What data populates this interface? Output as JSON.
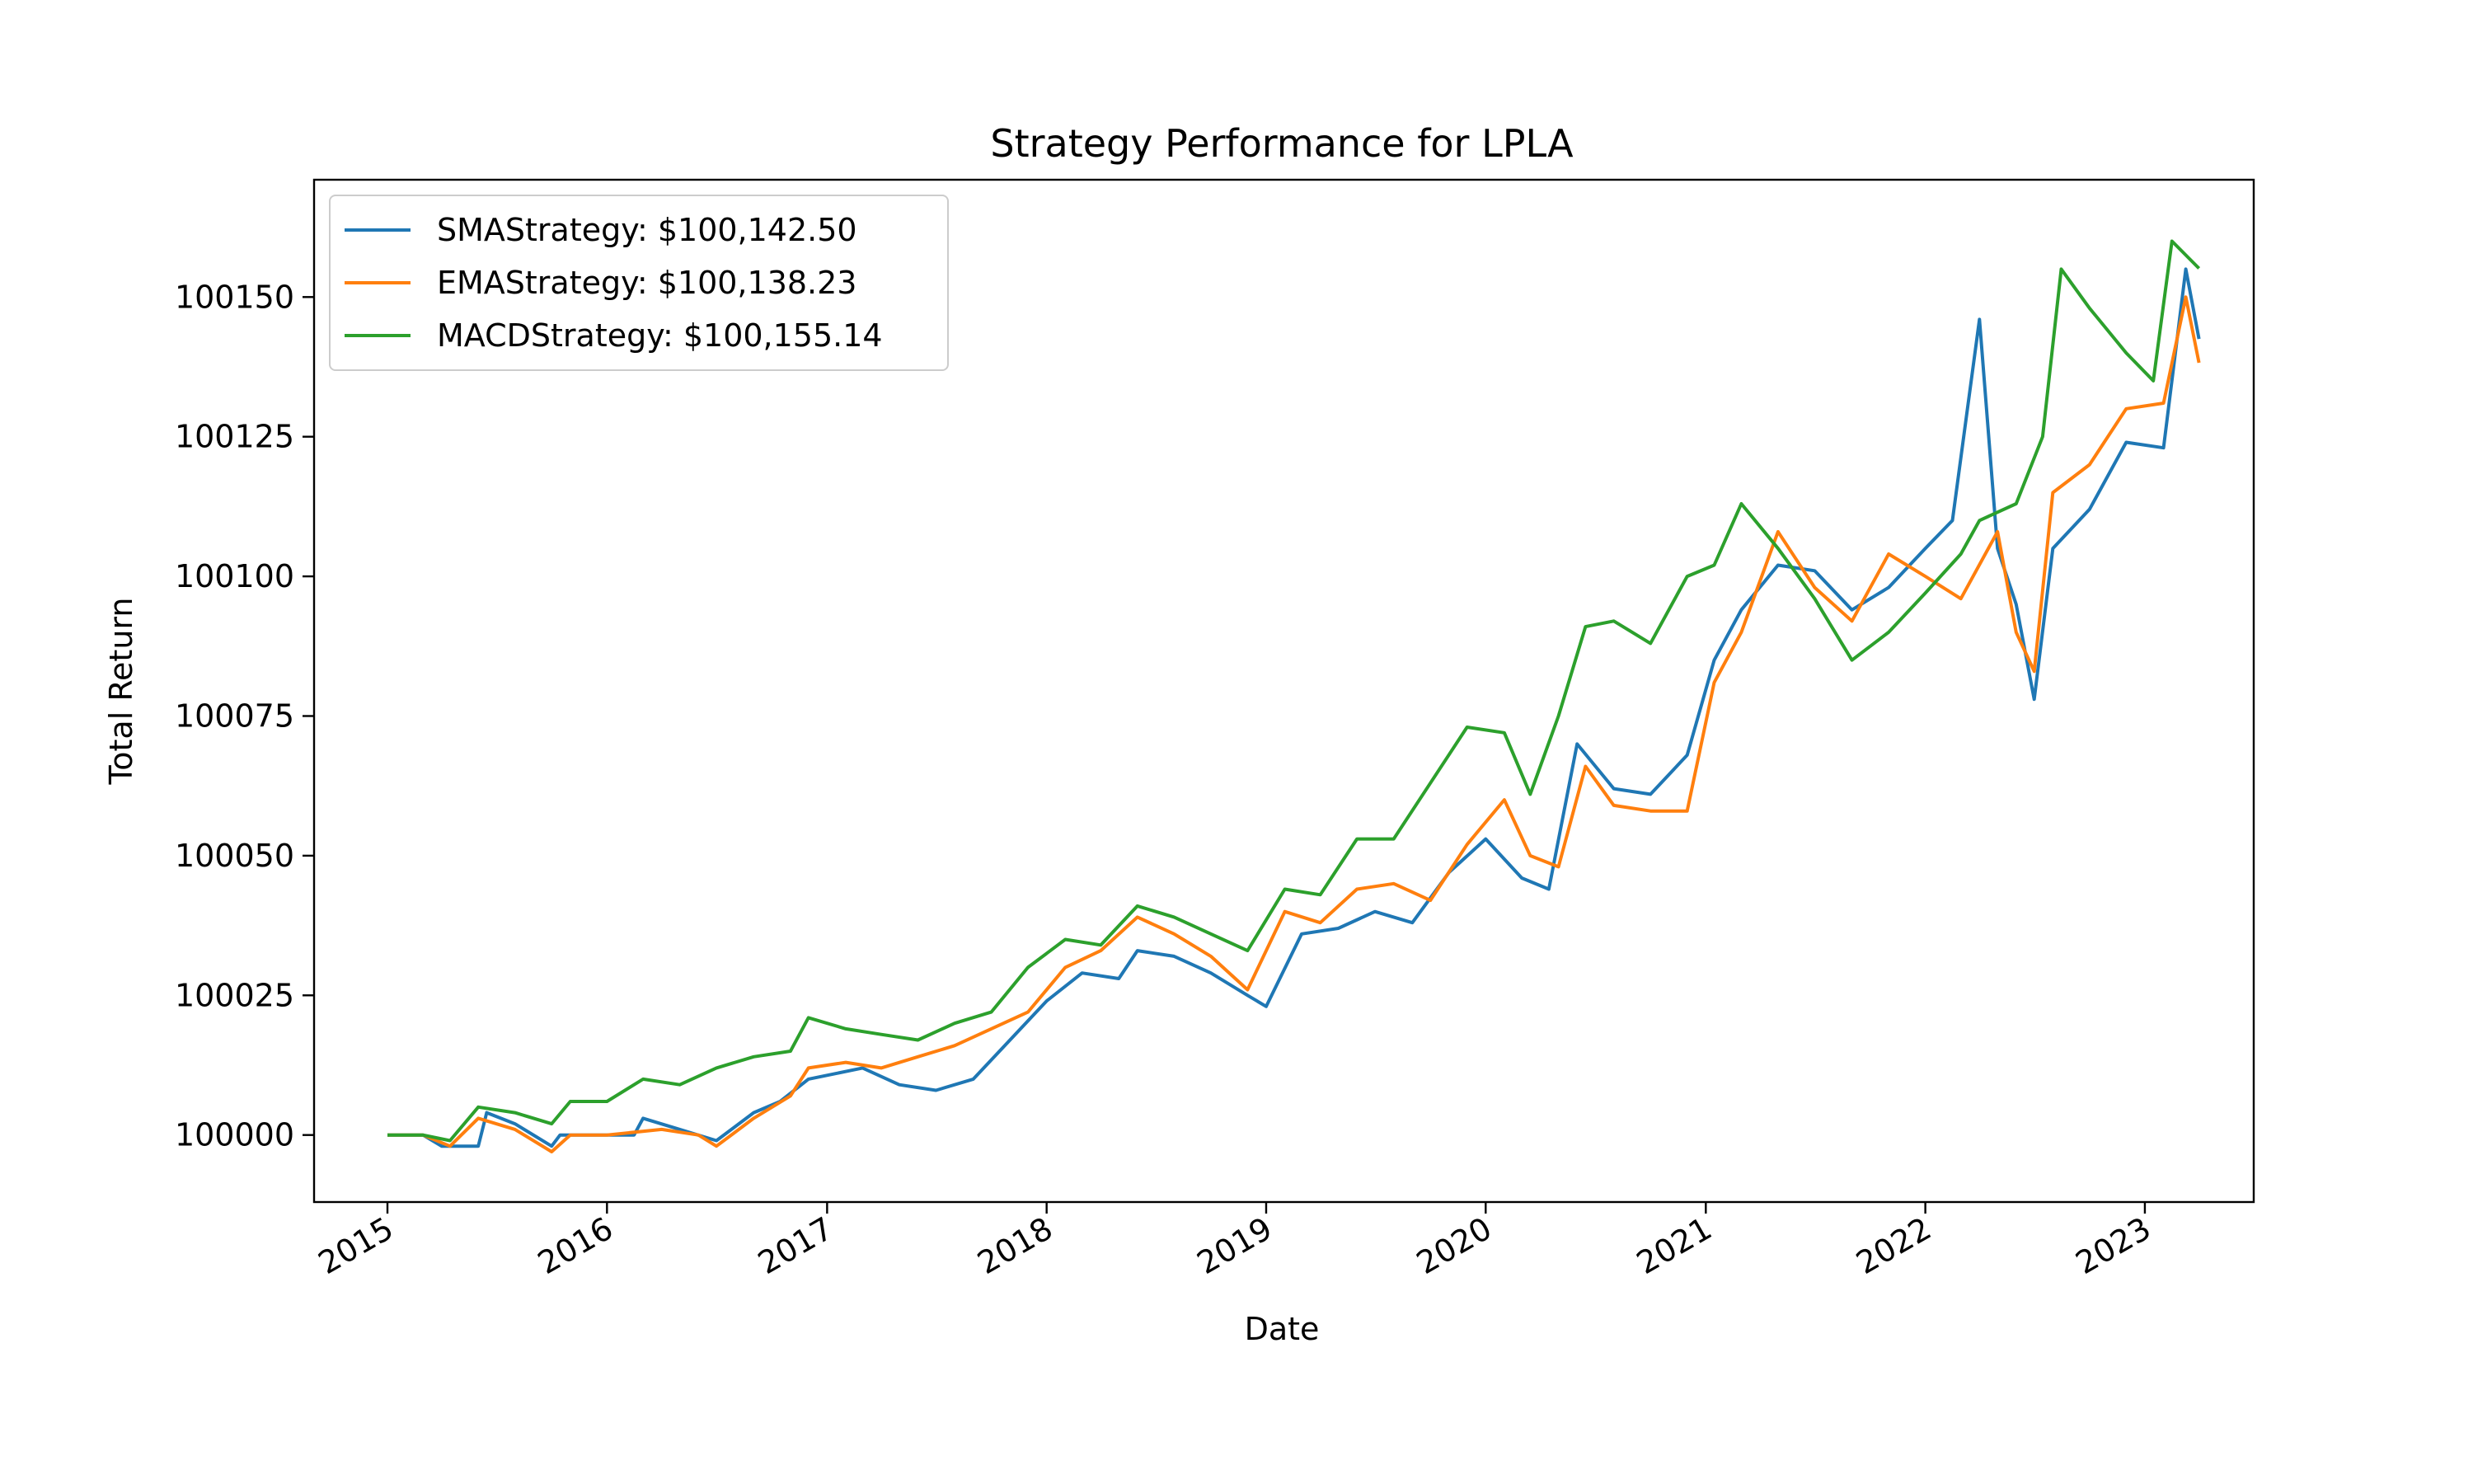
{
  "chart_data": {
    "type": "line",
    "title": "Strategy Performance for LPLA",
    "xlabel": "Date",
    "ylabel": "Total Return",
    "xlim": [
      "2014-09-01",
      "2023-07-01"
    ],
    "ylim": [
      99988,
      100171
    ],
    "x_ticks": [
      "2015",
      "2016",
      "2017",
      "2018",
      "2019",
      "2020",
      "2021",
      "2022",
      "2023"
    ],
    "y_ticks": [
      100000,
      100025,
      100050,
      100075,
      100100,
      100125,
      100150
    ],
    "legend": {
      "position": "top-left"
    },
    "grid": false,
    "series": [
      {
        "name": "SMAStrategy: $100,142.50",
        "color": "#1f77b4",
        "points": [
          [
            "2015-01-01",
            100000
          ],
          [
            "2015-03-01",
            100000
          ],
          [
            "2015-04-01",
            99998
          ],
          [
            "2015-06-01",
            99998
          ],
          [
            "2015-06-15",
            100004
          ],
          [
            "2015-08-01",
            100002
          ],
          [
            "2015-10-01",
            99998
          ],
          [
            "2015-10-15",
            100000
          ],
          [
            "2016-01-01",
            100000
          ],
          [
            "2016-02-15",
            100000
          ],
          [
            "2016-03-01",
            100003
          ],
          [
            "2016-05-01",
            100001
          ],
          [
            "2016-07-01",
            99999
          ],
          [
            "2016-09-01",
            100004
          ],
          [
            "2016-10-15",
            100006
          ],
          [
            "2016-12-01",
            100010
          ],
          [
            "2017-01-15",
            100011
          ],
          [
            "2017-03-01",
            100012
          ],
          [
            "2017-05-01",
            100009
          ],
          [
            "2017-07-01",
            100008
          ],
          [
            "2017-09-01",
            100010
          ],
          [
            "2017-11-01",
            100017
          ],
          [
            "2018-01-01",
            100024
          ],
          [
            "2018-03-01",
            100029
          ],
          [
            "2018-05-01",
            100028
          ],
          [
            "2018-06-01",
            100033
          ],
          [
            "2018-08-01",
            100032
          ],
          [
            "2018-10-01",
            100029
          ],
          [
            "2018-12-01",
            100025
          ],
          [
            "2019-01-01",
            100023
          ],
          [
            "2019-03-01",
            100036
          ],
          [
            "2019-05-01",
            100037
          ],
          [
            "2019-07-01",
            100040
          ],
          [
            "2019-09-01",
            100038
          ],
          [
            "2019-11-01",
            100047
          ],
          [
            "2020-01-01",
            100053
          ],
          [
            "2020-03-01",
            100046
          ],
          [
            "2020-04-15",
            100044
          ],
          [
            "2020-06-01",
            100070
          ],
          [
            "2020-08-01",
            100062
          ],
          [
            "2020-10-01",
            100061
          ],
          [
            "2020-12-01",
            100068
          ],
          [
            "2021-01-15",
            100085
          ],
          [
            "2021-03-01",
            100094
          ],
          [
            "2021-05-01",
            100102
          ],
          [
            "2021-07-01",
            100101
          ],
          [
            "2021-09-01",
            100094
          ],
          [
            "2021-11-01",
            100098
          ],
          [
            "2022-01-01",
            100105
          ],
          [
            "2022-02-15",
            100110
          ],
          [
            "2022-04-01",
            100146
          ],
          [
            "2022-05-01",
            100105
          ],
          [
            "2022-06-01",
            100095
          ],
          [
            "2022-07-01",
            100078
          ],
          [
            "2022-08-01",
            100105
          ],
          [
            "2022-10-01",
            100112
          ],
          [
            "2022-12-01",
            100124
          ],
          [
            "2023-02-01",
            100123
          ],
          [
            "2023-03-10",
            100155
          ],
          [
            "2023-04-01",
            100142.5
          ]
        ]
      },
      {
        "name": "EMAStrategy: $100,138.23",
        "color": "#ff7f0e",
        "points": [
          [
            "2015-01-01",
            100000
          ],
          [
            "2015-03-01",
            100000
          ],
          [
            "2015-04-15",
            99998
          ],
          [
            "2015-06-01",
            100003
          ],
          [
            "2015-08-01",
            100001
          ],
          [
            "2015-10-01",
            99997
          ],
          [
            "2015-11-01",
            100000
          ],
          [
            "2016-01-01",
            100000
          ],
          [
            "2016-04-01",
            100001
          ],
          [
            "2016-06-01",
            100000
          ],
          [
            "2016-07-01",
            99998
          ],
          [
            "2016-09-01",
            100003
          ],
          [
            "2016-11-01",
            100007
          ],
          [
            "2016-12-01",
            100012
          ],
          [
            "2017-02-01",
            100013
          ],
          [
            "2017-04-01",
            100012
          ],
          [
            "2017-06-01",
            100014
          ],
          [
            "2017-08-01",
            100016
          ],
          [
            "2017-10-01",
            100019
          ],
          [
            "2017-12-01",
            100022
          ],
          [
            "2018-02-01",
            100030
          ],
          [
            "2018-04-01",
            100033
          ],
          [
            "2018-06-01",
            100039
          ],
          [
            "2018-08-01",
            100036
          ],
          [
            "2018-10-01",
            100032
          ],
          [
            "2018-12-01",
            100026
          ],
          [
            "2019-02-01",
            100040
          ],
          [
            "2019-04-01",
            100038
          ],
          [
            "2019-06-01",
            100044
          ],
          [
            "2019-08-01",
            100045
          ],
          [
            "2019-10-01",
            100042
          ],
          [
            "2019-12-01",
            100052
          ],
          [
            "2020-02-01",
            100060
          ],
          [
            "2020-03-15",
            100050
          ],
          [
            "2020-05-01",
            100048
          ],
          [
            "2020-06-15",
            100066
          ],
          [
            "2020-08-01",
            100059
          ],
          [
            "2020-10-01",
            100058
          ],
          [
            "2020-12-01",
            100058
          ],
          [
            "2021-01-15",
            100081
          ],
          [
            "2021-03-01",
            100090
          ],
          [
            "2021-05-01",
            100108
          ],
          [
            "2021-07-01",
            100098
          ],
          [
            "2021-09-01",
            100092
          ],
          [
            "2021-11-01",
            100104
          ],
          [
            "2022-01-01",
            100100
          ],
          [
            "2022-03-01",
            100096
          ],
          [
            "2022-05-01",
            100108
          ],
          [
            "2022-06-01",
            100090
          ],
          [
            "2022-07-01",
            100083
          ],
          [
            "2022-08-01",
            100115
          ],
          [
            "2022-10-01",
            100120
          ],
          [
            "2022-12-01",
            100130
          ],
          [
            "2023-02-01",
            100131
          ],
          [
            "2023-03-10",
            100150
          ],
          [
            "2023-04-01",
            100138.23
          ]
        ]
      },
      {
        "name": "MACDStrategy: $100,155.14",
        "color": "#2ca02c",
        "points": [
          [
            "2015-01-01",
            100000
          ],
          [
            "2015-03-01",
            100000
          ],
          [
            "2015-04-15",
            99999
          ],
          [
            "2015-06-01",
            100005
          ],
          [
            "2015-08-01",
            100004
          ],
          [
            "2015-10-01",
            100002
          ],
          [
            "2015-11-01",
            100006
          ],
          [
            "2016-01-01",
            100006
          ],
          [
            "2016-03-01",
            100010
          ],
          [
            "2016-05-01",
            100009
          ],
          [
            "2016-07-01",
            100012
          ],
          [
            "2016-09-01",
            100014
          ],
          [
            "2016-11-01",
            100015
          ],
          [
            "2016-12-01",
            100021
          ],
          [
            "2017-02-01",
            100019
          ],
          [
            "2017-04-01",
            100018
          ],
          [
            "2017-06-01",
            100017
          ],
          [
            "2017-08-01",
            100020
          ],
          [
            "2017-10-01",
            100022
          ],
          [
            "2017-12-01",
            100030
          ],
          [
            "2018-02-01",
            100035
          ],
          [
            "2018-04-01",
            100034
          ],
          [
            "2018-06-01",
            100041
          ],
          [
            "2018-08-01",
            100039
          ],
          [
            "2018-10-01",
            100036
          ],
          [
            "2018-12-01",
            100033
          ],
          [
            "2019-02-01",
            100044
          ],
          [
            "2019-04-01",
            100043
          ],
          [
            "2019-06-01",
            100053
          ],
          [
            "2019-08-01",
            100053
          ],
          [
            "2019-10-01",
            100063
          ],
          [
            "2019-12-01",
            100073
          ],
          [
            "2020-02-01",
            100072
          ],
          [
            "2020-03-15",
            100061
          ],
          [
            "2020-05-01",
            100075
          ],
          [
            "2020-06-15",
            100091
          ],
          [
            "2020-08-01",
            100092
          ],
          [
            "2020-10-01",
            100088
          ],
          [
            "2020-12-01",
            100100
          ],
          [
            "2021-01-15",
            100102
          ],
          [
            "2021-03-01",
            100113
          ],
          [
            "2021-05-01",
            100105
          ],
          [
            "2021-07-01",
            100096
          ],
          [
            "2021-09-01",
            100085
          ],
          [
            "2021-11-01",
            100090
          ],
          [
            "2022-01-01",
            100097
          ],
          [
            "2022-03-01",
            100104
          ],
          [
            "2022-04-01",
            100110
          ],
          [
            "2022-06-01",
            100113
          ],
          [
            "2022-07-15",
            100125
          ],
          [
            "2022-08-15",
            100155
          ],
          [
            "2022-10-01",
            100148
          ],
          [
            "2022-12-01",
            100140
          ],
          [
            "2023-01-15",
            100135
          ],
          [
            "2023-02-15",
            100160
          ],
          [
            "2023-04-01",
            100155.14
          ]
        ]
      }
    ]
  }
}
